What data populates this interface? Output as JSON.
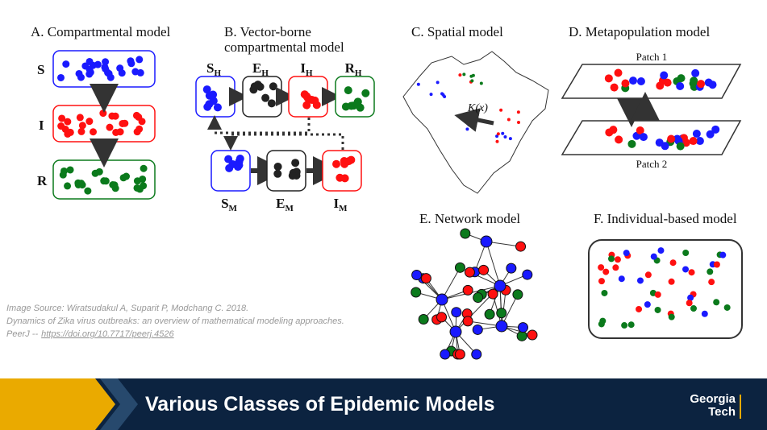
{
  "panels": {
    "a": {
      "title": "A. Compartmental model",
      "labels": [
        "S",
        "I",
        "R"
      ]
    },
    "b": {
      "title_lines": [
        "B. Vector-borne",
        "compartmental model"
      ],
      "host_labels": [
        {
          "main": "S",
          "sub": "H"
        },
        {
          "main": "E",
          "sub": "H"
        },
        {
          "main": "I",
          "sub": "H"
        },
        {
          "main": "R",
          "sub": "H"
        }
      ],
      "vector_labels": [
        {
          "main": "S",
          "sub": "M"
        },
        {
          "main": "E",
          "sub": "M"
        },
        {
          "main": "I",
          "sub": "M"
        }
      ]
    },
    "c": {
      "title": "C. Spatial model",
      "annotation": "K(x)"
    },
    "d": {
      "title": "D. Metapopulation model",
      "patches": [
        "Patch 1",
        "Patch 2"
      ]
    },
    "e": {
      "title": "E. Network model"
    },
    "f": {
      "title": "F. Individual-based model"
    }
  },
  "source": {
    "lines": [
      "Image Source: Wiratsudakul A, Suparit P, Modchang C. 2018.",
      "Dynamics of Zika virus outbreaks: an overview of mathematical modeling approaches.",
      "PeerJ --"
    ],
    "link": "https://doi.org/10.7717/peerj.4526"
  },
  "footer": {
    "title": "Various Classes of Epidemic Models",
    "logo": [
      "Georgia",
      "Tech"
    ]
  }
}
